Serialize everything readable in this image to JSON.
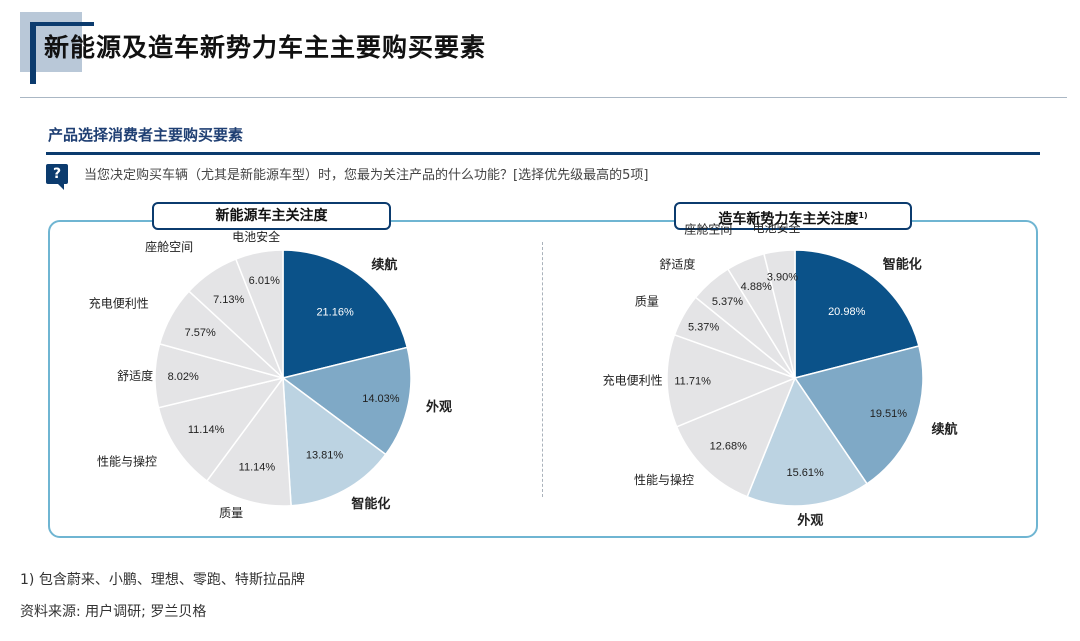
{
  "header": {
    "title": "新能源及造车新势力车主主要购买要素"
  },
  "section": {
    "title": "产品选择消费者主要购买要素",
    "question_icon": "?",
    "question": "当您决定购买车辆（尤其是新能源车型）时，您最为关注产品的什么功能？[选择优先级最高的5项]"
  },
  "colors": {
    "dark": "#0b5289",
    "mid": "#7fa9c6",
    "light": "#bcd3e2",
    "gray": "#e4e4e6",
    "border": "#6fb5d2",
    "navy": "#0b3b6e"
  },
  "chart_data": [
    {
      "type": "pie",
      "title": "新能源车主关注度",
      "slices": [
        {
          "label": "续航",
          "value": 21.16,
          "display": "21.16%"
        },
        {
          "label": "外观",
          "value": 14.03,
          "display": "14.03%"
        },
        {
          "label": "智能化",
          "value": 13.81,
          "display": "13.81%"
        },
        {
          "label": "质量",
          "value": 11.14,
          "display": "11.14%"
        },
        {
          "label": "性能与操控",
          "value": 11.14,
          "display": "11.14%"
        },
        {
          "label": "舒适度",
          "value": 8.02,
          "display": "8.02%"
        },
        {
          "label": "充电便利性",
          "value": 7.57,
          "display": "7.57%"
        },
        {
          "label": "座舱空间",
          "value": 7.13,
          "display": "7.13%"
        },
        {
          "label": "电池安全",
          "value": 6.01,
          "display": "6.01%"
        }
      ]
    },
    {
      "type": "pie",
      "title": "造车新势力车主关注度",
      "title_note": "1)",
      "slices": [
        {
          "label": "智能化",
          "value": 20.98,
          "display": "20.98%"
        },
        {
          "label": "续航",
          "value": 19.51,
          "display": "19.51%"
        },
        {
          "label": "外观",
          "value": 15.61,
          "display": "15.61%"
        },
        {
          "label": "性能与操控",
          "value": 12.68,
          "display": "12.68%"
        },
        {
          "label": "充电便利性",
          "value": 11.71,
          "display": "11.71%"
        },
        {
          "label": "质量",
          "value": 5.37,
          "display": "5.37%"
        },
        {
          "label": "舒适度",
          "value": 5.37,
          "display": "5.37%"
        },
        {
          "label": "座舱空间",
          "value": 4.88,
          "display": "4.88%"
        },
        {
          "label": "电池安全",
          "value": 3.9,
          "display": "3.90%"
        }
      ]
    }
  ],
  "footnote": "1) 包含蔚来、小鹏、理想、零跑、特斯拉品牌",
  "source": "资料来源: 用户调研; 罗兰贝格"
}
